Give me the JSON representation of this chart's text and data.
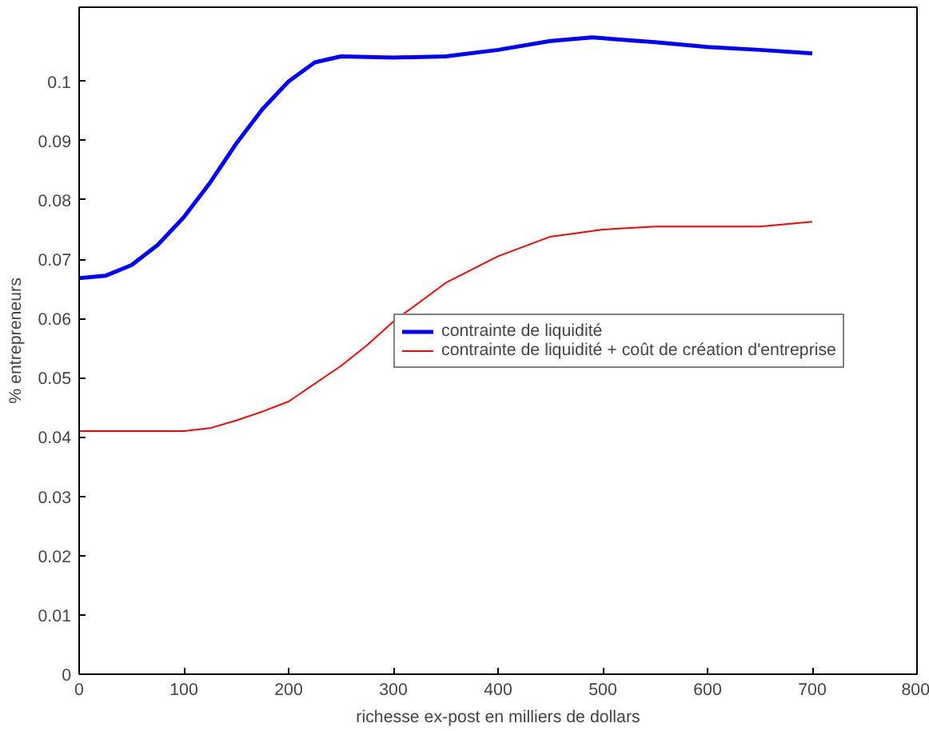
{
  "chart_data": {
    "type": "line",
    "xlabel": "richesse ex-post en milliers de dollars",
    "ylabel": "% entrepreneurs",
    "xlim": [
      0,
      800
    ],
    "xticks": [
      0,
      100,
      200,
      300,
      400,
      500,
      600,
      700,
      800
    ],
    "ylim": [
      0,
      0.1125
    ],
    "yticks": [
      0,
      0.01,
      0.02,
      0.03,
      0.04,
      0.05,
      0.06,
      0.07,
      0.08,
      0.09,
      0.1
    ],
    "grid": false,
    "legend": "right",
    "marker": "none",
    "line_style": "solid",
    "series": [
      {
        "name": "contrainte de liquidité",
        "color": "#0000ff",
        "x": [
          0,
          25,
          50,
          75,
          100,
          125,
          150,
          175,
          200,
          225,
          250,
          300,
          350,
          400,
          450,
          490,
          550,
          600,
          650,
          700
        ],
        "values": [
          0.0668,
          0.0672,
          0.069,
          0.0724,
          0.0771,
          0.0829,
          0.0895,
          0.0953,
          0.1,
          0.1032,
          0.1042,
          0.104,
          0.1042,
          0.1053,
          0.1068,
          0.1074,
          0.1066,
          0.1058,
          0.1053,
          0.1047
        ]
      },
      {
        "name": "contrainte de liquidité + coût de création d'entreprise",
        "color": "#ff0000",
        "x": [
          0,
          50,
          100,
          125,
          150,
          175,
          200,
          225,
          250,
          275,
          300,
          350,
          400,
          450,
          500,
          550,
          600,
          650,
          700
        ],
        "values": [
          0.041,
          0.041,
          0.041,
          0.0415,
          0.0428,
          0.0443,
          0.046,
          0.049,
          0.052,
          0.0555,
          0.0595,
          0.066,
          0.0705,
          0.0738,
          0.075,
          0.0755,
          0.0755,
          0.0755,
          0.0763
        ]
      }
    ]
  }
}
